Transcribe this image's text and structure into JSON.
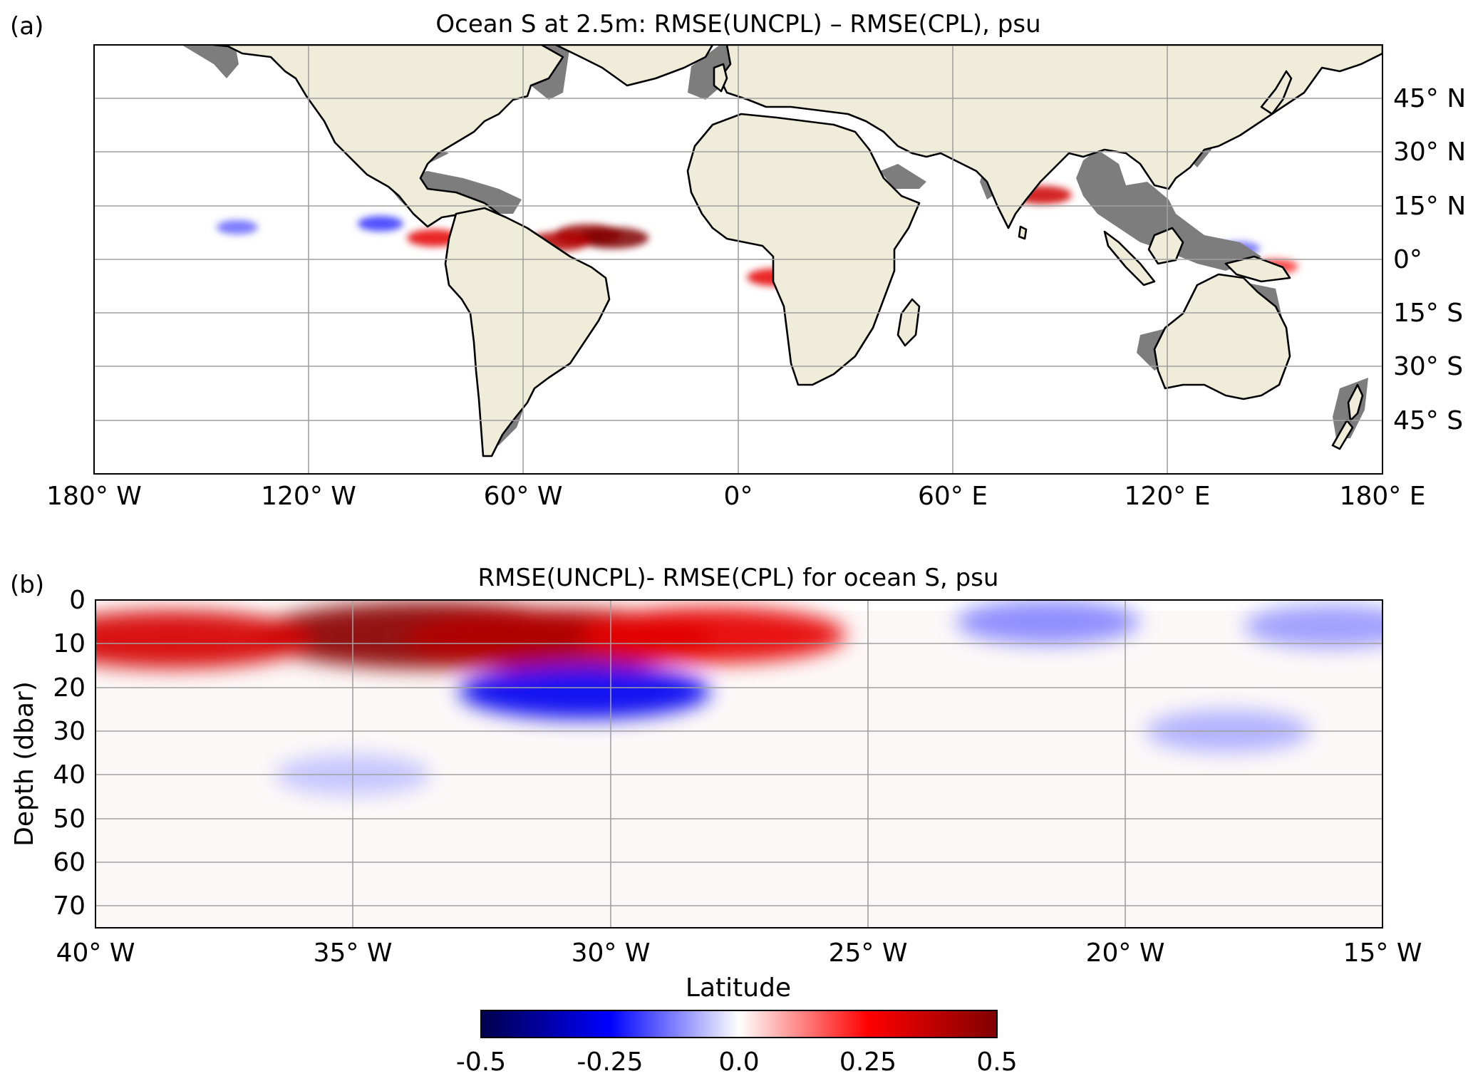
{
  "chart_data": [
    {
      "panel_label": "(a)",
      "type": "heatmap",
      "title": "Ocean S at 2.5m: RMSE(UNCPL) – RMSE(CPL), psu",
      "x_ticks": [
        "180° W",
        "120° W",
        "60° W",
        "0°",
        "60° E",
        "120° E",
        "180° E"
      ],
      "y_ticks": [
        "45° N",
        "30° N",
        "15° N",
        "0°",
        "15° S",
        "30° S",
        "45° S"
      ],
      "xlim": [
        -180,
        180
      ],
      "ylim": [
        -60,
        60
      ],
      "grid": true,
      "anomalies": [
        {
          "lon": -42,
          "lat": 7,
          "value": 0.45
        },
        {
          "lon": -35,
          "lat": 6,
          "value": 0.5
        },
        {
          "lon": -50,
          "lat": 5,
          "value": 0.4
        },
        {
          "lon": -85,
          "lat": 6,
          "value": 0.3
        },
        {
          "lon": -100,
          "lat": 10,
          "value": -0.2
        },
        {
          "lon": -140,
          "lat": 9,
          "value": -0.15
        },
        {
          "lon": 10,
          "lat": -5,
          "value": 0.3
        },
        {
          "lon": 85,
          "lat": 18,
          "value": 0.35
        },
        {
          "lon": 140,
          "lat": 3,
          "value": -0.15
        },
        {
          "lon": 150,
          "lat": -2,
          "value": 0.2
        }
      ],
      "colors": {
        "land": "#efecd9",
        "shelf": "#7d7d7d",
        "coastline": "#000000"
      }
    },
    {
      "panel_label": "(b)",
      "type": "heatmap",
      "title": "RMSE(UNCPL)- RMSE(CPL) for ocean S, psu",
      "xlabel": "Latitude",
      "ylabel": "Depth (dbar)",
      "x_ticks": [
        "40° W",
        "35° W",
        "30° W",
        "25° W",
        "20° W",
        "15° W"
      ],
      "x_tick_values": [
        -40,
        -35,
        -30,
        -25,
        -20,
        -15
      ],
      "y_ticks": [
        "0",
        "10",
        "20",
        "30",
        "40",
        "50",
        "60",
        "70"
      ],
      "y_tick_values": [
        0,
        10,
        20,
        30,
        40,
        50,
        60,
        70
      ],
      "xlim": [
        -40,
        -15
      ],
      "ylim": [
        75,
        0
      ],
      "grid": true,
      "anomalies": [
        {
          "lon": -33.5,
          "depth": 8,
          "value": 0.48
        },
        {
          "lon": -31,
          "depth": 9,
          "value": 0.4
        },
        {
          "lon": -38.5,
          "depth": 9,
          "value": 0.33
        },
        {
          "lon": -28,
          "depth": 8,
          "value": 0.3
        },
        {
          "lon": -30.5,
          "depth": 21,
          "value": -0.27
        },
        {
          "lon": -21.5,
          "depth": 5,
          "value": -0.12
        },
        {
          "lon": -16,
          "depth": 6,
          "value": -0.1
        },
        {
          "lon": -18,
          "depth": 30,
          "value": -0.08
        },
        {
          "lon": -35,
          "depth": 40,
          "value": -0.06
        }
      ]
    }
  ],
  "colorbar": {
    "ticks": [
      "-0.5",
      "-0.25",
      "0.0",
      "0.25",
      "0.5"
    ],
    "range": [
      -0.5,
      0.5
    ],
    "colormap": [
      "#00004c",
      "#0000ff",
      "#ffffff",
      "#ff0000",
      "#800000"
    ]
  }
}
